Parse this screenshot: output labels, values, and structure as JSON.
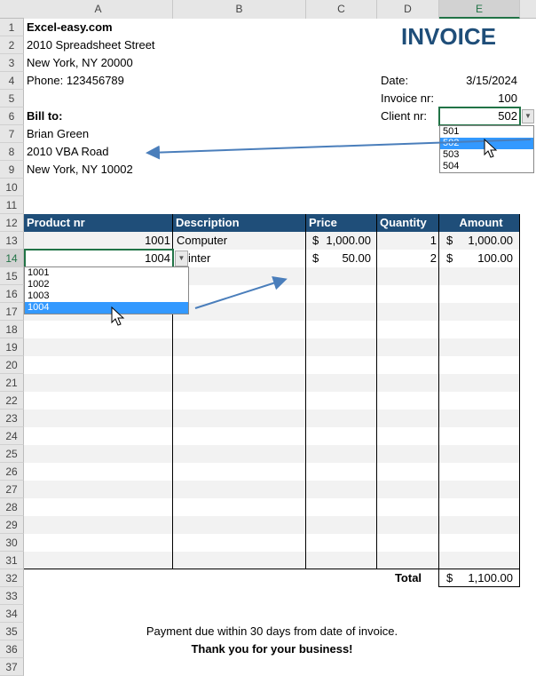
{
  "sheet": {
    "columns": [
      "A",
      "B",
      "C",
      "D",
      "E"
    ],
    "row_numbers": [
      1,
      2,
      3,
      4,
      5,
      6,
      7,
      8,
      9,
      10,
      11,
      12,
      13,
      14,
      15,
      16,
      17,
      18,
      19,
      20,
      21,
      22,
      23,
      24,
      25,
      26,
      27,
      28,
      29,
      30,
      31,
      32,
      33,
      34,
      35,
      36,
      37
    ]
  },
  "company": {
    "name": "Excel-easy.com",
    "street": "2010 Spreadsheet Street",
    "city": "New York, NY 20000",
    "phone": "Phone: 123456789"
  },
  "title": "INVOICE",
  "details": [
    {
      "label": "Date:",
      "value": "3/15/2024"
    },
    {
      "label": "Invoice nr:",
      "value": "100"
    },
    {
      "label": "Client nr:",
      "value": "502"
    }
  ],
  "bill_to": {
    "label": "Bill to:",
    "name": "Brian Green",
    "street": "2010 VBA Road",
    "city": "New York, NY 10002"
  },
  "client_dropdown": {
    "options": [
      "501",
      "502",
      "503",
      "504"
    ],
    "selected": 1
  },
  "table": {
    "header": [
      "Product nr",
      "Description",
      "Price",
      "Quantity",
      "Amount"
    ],
    "currency": "$",
    "rows": [
      [
        "1001",
        "Computer",
        "1,000.00",
        "1",
        "1,000.00"
      ],
      [
        "1004",
        "Printer",
        "50.00",
        "2",
        "100.00"
      ]
    ]
  },
  "product_dropdown": {
    "options": [
      "1001",
      "1002",
      "1003",
      "1004"
    ],
    "selected": 3
  },
  "total": {
    "label": "Total",
    "value": "1,100.00"
  },
  "footer": {
    "note": "Payment due within 30 days from date of invoice.",
    "thanks": "Thank you for your business!"
  }
}
